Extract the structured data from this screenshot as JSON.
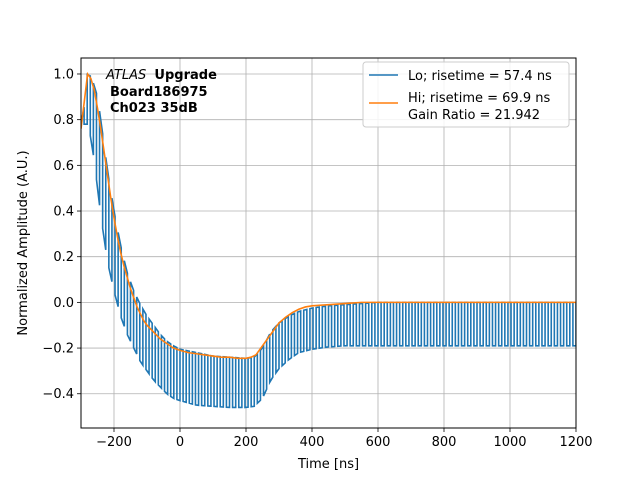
{
  "chart_data": {
    "type": "line",
    "title": "",
    "xlabel": "Time [ns]",
    "ylabel": "Normalized Amplitude (A.U.)",
    "xlim": [
      -300,
      1200
    ],
    "ylim": [
      -0.55,
      1.07
    ],
    "grid": true,
    "legend_position": "top-right",
    "x_ticks": [
      -200,
      0,
      200,
      400,
      600,
      800,
      1000,
      1200
    ],
    "x_tick_labels": [
      "−200",
      "0",
      "200",
      "400",
      "600",
      "800",
      "1000",
      "1200"
    ],
    "y_ticks": [
      -0.4,
      -0.2,
      0.0,
      0.2,
      0.4,
      0.6,
      0.8,
      1.0
    ],
    "y_tick_labels": [
      "−0.4",
      "−0.2",
      "0.0",
      "0.2",
      "0.4",
      "0.6",
      "0.8",
      "1.0"
    ],
    "annotation": {
      "atlas": "ATLAS",
      "upgrade": "Upgrade",
      "line2": "Board186975",
      "line3": "Ch023 35dB"
    },
    "series": [
      {
        "name": "Lo; risetime = 57.4 ns",
        "color": "#1f77b4",
        "style": "dense-oscillating",
        "envelope_upper": {
          "x": [
            -300,
            -290,
            -285,
            -270,
            -260,
            -250,
            -240,
            -220,
            -200,
            -180,
            -160,
            -140,
            -120,
            -100,
            -80,
            -60,
            -40,
            -20,
            0,
            50,
            100,
            150,
            200,
            225,
            250,
            275,
            300,
            330,
            360,
            400,
            450,
            500,
            550,
            600,
            700,
            800,
            900,
            1000,
            1100,
            1200
          ],
          "y": [
            0.78,
            0.86,
            1.0,
            0.99,
            0.95,
            0.9,
            0.8,
            0.58,
            0.4,
            0.25,
            0.13,
            0.05,
            -0.01,
            -0.06,
            -0.1,
            -0.14,
            -0.17,
            -0.19,
            -0.205,
            -0.22,
            -0.235,
            -0.24,
            -0.245,
            -0.24,
            -0.2,
            -0.13,
            -0.09,
            -0.06,
            -0.04,
            -0.025,
            -0.015,
            -0.01,
            -0.005,
            0.0,
            0.0,
            0.0,
            0.0,
            0.0,
            0.0,
            0.0
          ]
        },
        "envelope_lower": {
          "x": [
            -300,
            -290,
            -285,
            -270,
            -260,
            -250,
            -240,
            -220,
            -200,
            -180,
            -160,
            -140,
            -120,
            -100,
            -80,
            -60,
            -40,
            -20,
            0,
            50,
            100,
            150,
            200,
            225,
            250,
            275,
            300,
            330,
            360,
            400,
            450,
            500,
            550,
            600,
            700,
            800,
            900,
            1000,
            1100,
            1200
          ],
          "y": [
            0.78,
            0.78,
            0.8,
            0.72,
            0.62,
            0.5,
            0.38,
            0.18,
            0.05,
            -0.06,
            -0.14,
            -0.2,
            -0.26,
            -0.3,
            -0.34,
            -0.37,
            -0.4,
            -0.42,
            -0.43,
            -0.45,
            -0.455,
            -0.46,
            -0.46,
            -0.455,
            -0.42,
            -0.34,
            -0.29,
            -0.25,
            -0.22,
            -0.205,
            -0.195,
            -0.19,
            -0.19,
            -0.19,
            -0.19,
            -0.19,
            -0.19,
            -0.19,
            -0.19,
            -0.19
          ]
        },
        "period_ns": 18.75
      },
      {
        "name": "Hi; risetime = 69.9 ns\n Gain Ratio = 21.942",
        "color": "#ff7f0e",
        "style": "line",
        "x": [
          -300,
          -290,
          -280,
          -270,
          -260,
          -250,
          -240,
          -230,
          -220,
          -210,
          -200,
          -190,
          -180,
          -170,
          -160,
          -150,
          -140,
          -130,
          -120,
          -110,
          -100,
          -80,
          -60,
          -40,
          -20,
          0,
          25,
          50,
          75,
          100,
          125,
          150,
          175,
          200,
          215,
          230,
          245,
          260,
          275,
          290,
          300,
          320,
          340,
          360,
          380,
          400,
          450,
          500,
          550,
          600,
          700,
          800,
          900,
          1000,
          1100,
          1200
        ],
        "y": [
          0.76,
          0.88,
          1.0,
          0.98,
          0.93,
          0.85,
          0.76,
          0.66,
          0.56,
          0.46,
          0.37,
          0.29,
          0.22,
          0.16,
          0.11,
          0.06,
          0.02,
          -0.02,
          -0.05,
          -0.08,
          -0.1,
          -0.13,
          -0.16,
          -0.18,
          -0.2,
          -0.21,
          -0.22,
          -0.225,
          -0.23,
          -0.235,
          -0.24,
          -0.24,
          -0.245,
          -0.245,
          -0.24,
          -0.23,
          -0.2,
          -0.17,
          -0.14,
          -0.11,
          -0.09,
          -0.065,
          -0.045,
          -0.03,
          -0.02,
          -0.015,
          -0.01,
          -0.005,
          0.0,
          0.0,
          0.0,
          0.0,
          0.0,
          0.0,
          0.0,
          0.0
        ]
      }
    ]
  }
}
